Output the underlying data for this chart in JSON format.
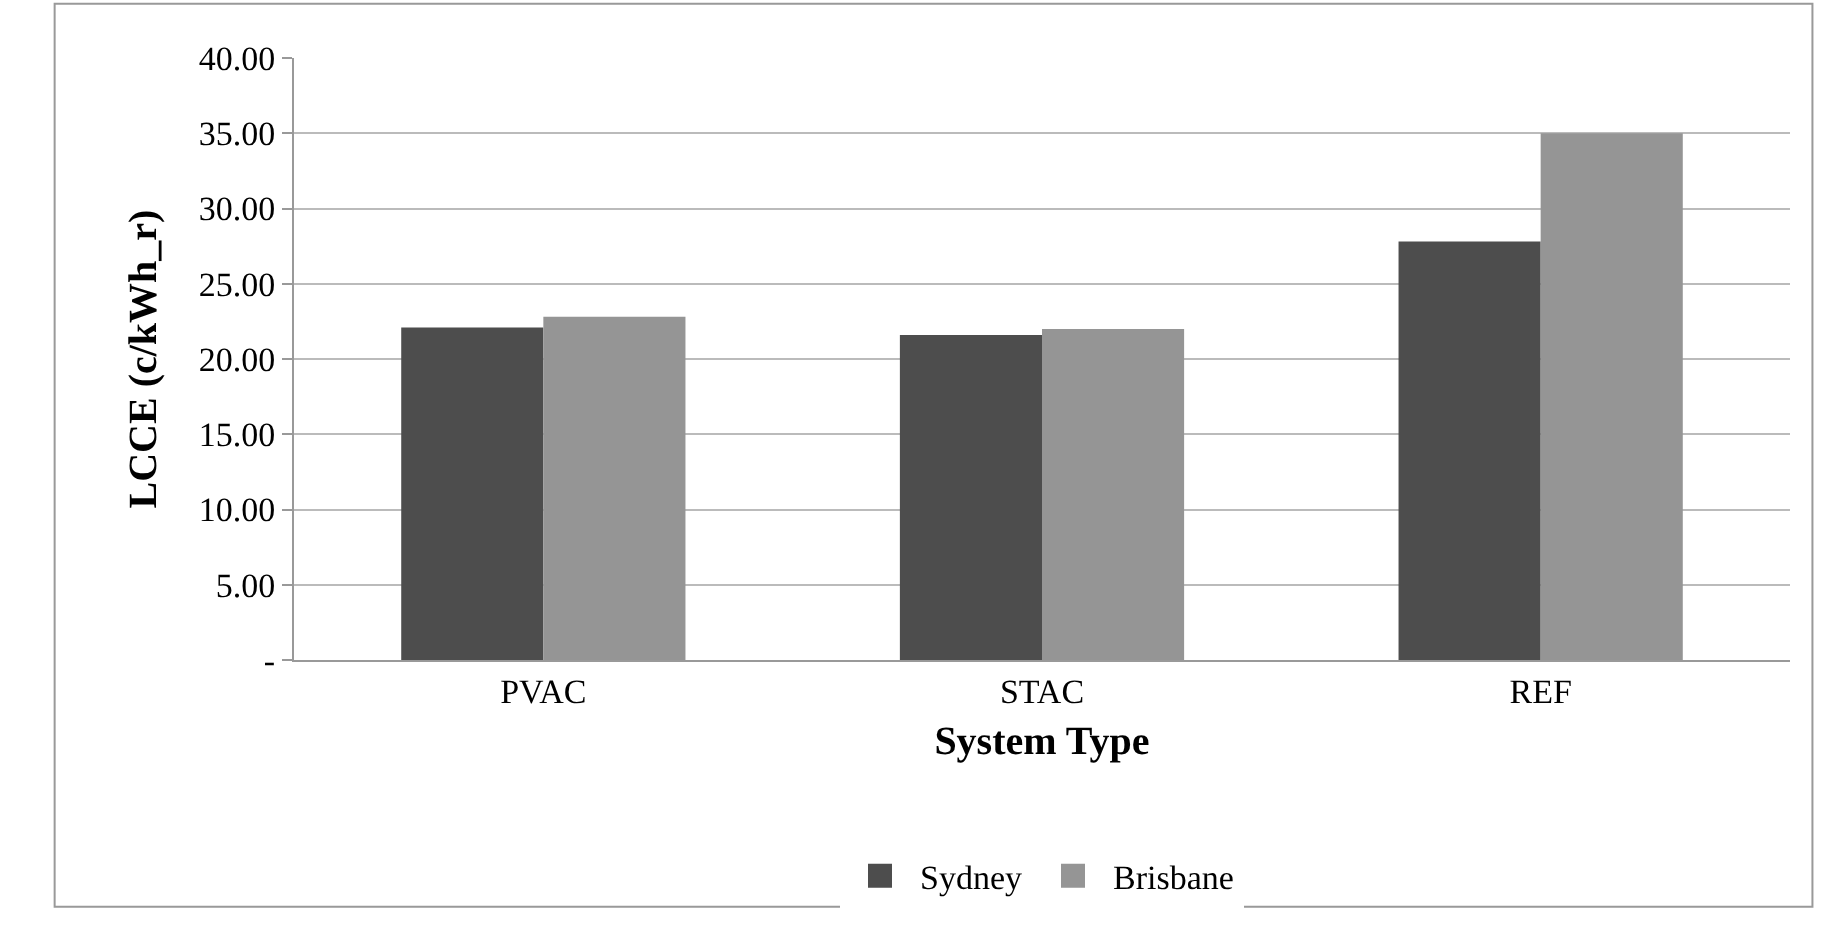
{
  "chart_data": {
    "type": "bar",
    "xlabel": "System Type",
    "ylabel": "LCCE (c/kWh_r)",
    "categories": [
      "PVAC",
      "STAC",
      "REF"
    ],
    "series": [
      {
        "name": "Sydney",
        "color": "#4d4d4d",
        "values": [
          22.1,
          21.6,
          27.8
        ]
      },
      {
        "name": "Brisbane",
        "color": "#959595",
        "values": [
          22.8,
          22.0,
          35.0
        ]
      }
    ],
    "ylim": [
      0,
      40
    ],
    "yticks": [
      {
        "value": 0,
        "label": "-"
      },
      {
        "value": 5,
        "label": "5.00"
      },
      {
        "value": 10,
        "label": "10.00"
      },
      {
        "value": 15,
        "label": "15.00"
      },
      {
        "value": 20,
        "label": "20.00"
      },
      {
        "value": 25,
        "label": "25.00"
      },
      {
        "value": 30,
        "label": "30.00"
      },
      {
        "value": 35,
        "label": "35.00"
      },
      {
        "value": 40,
        "label": "40.00"
      }
    ],
    "grid": "y",
    "legend": "bottom"
  }
}
